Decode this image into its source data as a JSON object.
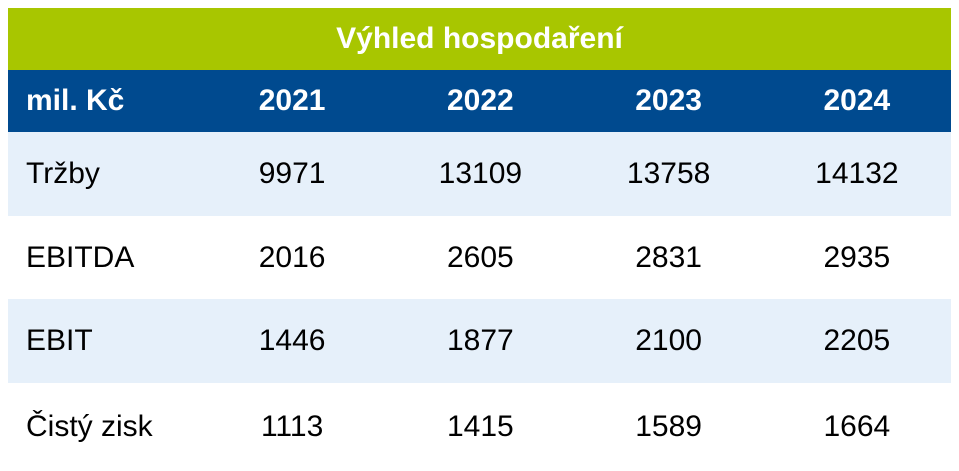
{
  "title": "Výhled hospodaření",
  "header": {
    "unit": "mil. Kč",
    "years": [
      "2021",
      "2022",
      "2023",
      "2024"
    ]
  },
  "rows": [
    {
      "label": "Tržby",
      "values": [
        "9971",
        "13109",
        "13758",
        "14132"
      ]
    },
    {
      "label": "EBITDA",
      "values": [
        "2016",
        "2605",
        "2831",
        "2935"
      ]
    },
    {
      "label": "EBIT",
      "values": [
        "1446",
        "1877",
        "2100",
        "2205"
      ]
    },
    {
      "label": "Čistý zisk",
      "values": [
        "1113",
        "1415",
        "1589",
        "1664"
      ]
    }
  ],
  "colors": {
    "title_bg": "#a8c600",
    "header_bg": "#004a8f",
    "row_alt_bg": "#e6f0fa"
  }
}
